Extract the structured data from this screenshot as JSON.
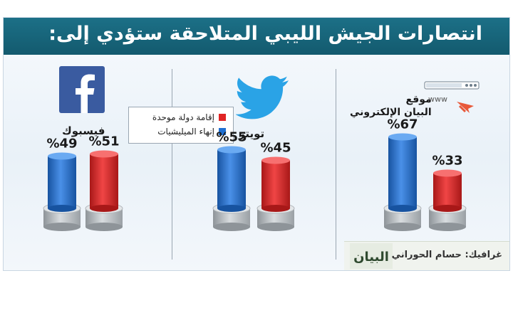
{
  "title": "انتصارات الجيش الليبي المتلاحقة ستؤدي إلى:",
  "legend": [
    {
      "label": "إقامة دولة موحدة",
      "color": "#e02424"
    },
    {
      "label": "إنهاء الميليشيات",
      "color": "#1f6fd1"
    }
  ],
  "columns": [
    {
      "label": "فيسبوك",
      "icon": "facebook-icon"
    },
    {
      "label": "تويتر",
      "icon": "twitter-icon"
    },
    {
      "label": "موقع\nالبيان الإلكتروني",
      "icon": "website-icon",
      "icon_text": "www"
    }
  ],
  "credit": "غرافيك: حسام الحوراني",
  "brand": "البيان",
  "chart_data": {
    "type": "bar",
    "categories": [
      "فيسبوك",
      "تويتر",
      "موقع البيان الإلكتروني"
    ],
    "series": [
      {
        "name": "إنهاء الميليشيات",
        "color": "#1f6fd1",
        "values": [
          49,
          55,
          67
        ]
      },
      {
        "name": "إقامة دولة موحدة",
        "color": "#e02424",
        "values": [
          51,
          45,
          33
        ]
      }
    ],
    "value_labels": [
      [
        "%49",
        "%51"
      ],
      [
        "%55",
        "%45"
      ],
      [
        "%67",
        "%33"
      ]
    ],
    "ylim": [
      0,
      100
    ],
    "legend_position": "top-left"
  }
}
